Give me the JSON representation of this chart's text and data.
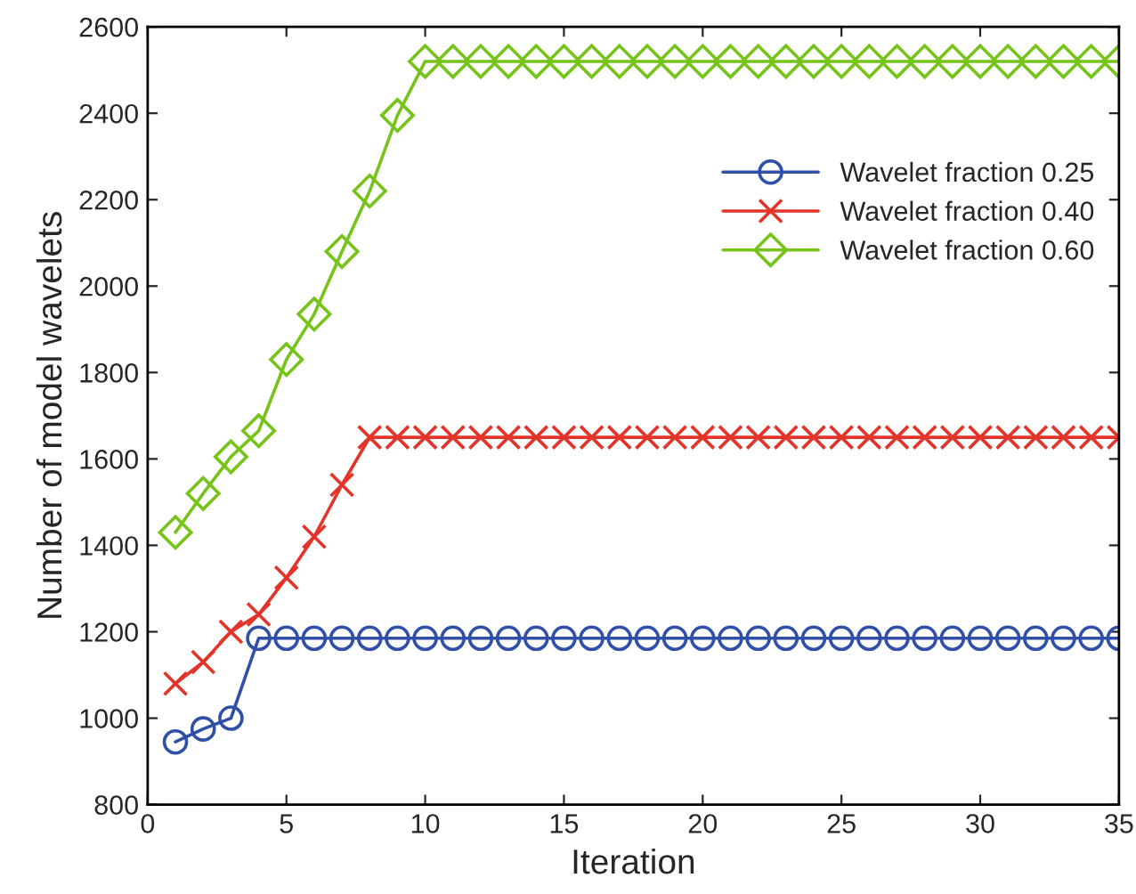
{
  "chart_data": {
    "type": "line",
    "xlabel": "Iteration",
    "ylabel": "Number of model wavelets",
    "x": [
      1,
      2,
      3,
      4,
      5,
      6,
      7,
      8,
      9,
      10,
      11,
      12,
      13,
      14,
      15,
      16,
      17,
      18,
      19,
      20,
      21,
      22,
      23,
      24,
      25,
      26,
      27,
      28,
      29,
      30,
      31,
      32,
      33,
      34,
      35
    ],
    "series": [
      {
        "name": "Wavelet fraction 0.25",
        "color": "#2f4fa8",
        "marker": "circle",
        "values": [
          945,
          975,
          1000,
          1185,
          1185,
          1185,
          1185,
          1185,
          1185,
          1185,
          1185,
          1185,
          1185,
          1185,
          1185,
          1185,
          1185,
          1185,
          1185,
          1185,
          1185,
          1185,
          1185,
          1185,
          1185,
          1185,
          1185,
          1185,
          1185,
          1185,
          1185,
          1185,
          1185,
          1185,
          1185
        ]
      },
      {
        "name": "Wavelet fraction 0.40",
        "color": "#e3342a",
        "marker": "cross",
        "values": [
          1080,
          1130,
          1200,
          1240,
          1325,
          1420,
          1540,
          1650,
          1650,
          1650,
          1650,
          1650,
          1650,
          1650,
          1650,
          1650,
          1650,
          1650,
          1650,
          1650,
          1650,
          1650,
          1650,
          1650,
          1650,
          1650,
          1650,
          1650,
          1650,
          1650,
          1650,
          1650,
          1650,
          1650,
          1650
        ]
      },
      {
        "name": "Wavelet fraction 0.60",
        "color": "#76c41a",
        "marker": "diamond",
        "values": [
          1430,
          1520,
          1605,
          1665,
          1830,
          1935,
          2080,
          2220,
          2395,
          2520,
          2520,
          2520,
          2520,
          2520,
          2520,
          2520,
          2520,
          2520,
          2520,
          2520,
          2520,
          2520,
          2520,
          2520,
          2520,
          2520,
          2520,
          2520,
          2520,
          2520,
          2520,
          2520,
          2520,
          2520,
          2520
        ]
      }
    ],
    "xlim": [
      0,
      35
    ],
    "xticks": [
      0,
      5,
      10,
      15,
      20,
      25,
      30,
      35
    ],
    "ylim": [
      800,
      2600
    ],
    "yticks": [
      800,
      1000,
      1200,
      1400,
      1600,
      1800,
      2000,
      2200,
      2400,
      2600
    ],
    "grid": false,
    "legend": "right",
    "line_style": "solid"
  }
}
